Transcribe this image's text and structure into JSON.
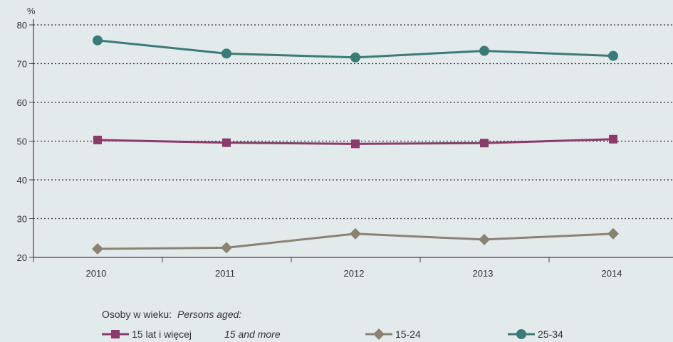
{
  "chart_data": {
    "type": "line",
    "unit_label": "%",
    "categories": [
      "2010",
      "2011",
      "2012",
      "2013",
      "2014"
    ],
    "ylim": [
      20,
      80
    ],
    "y_ticks": [
      20,
      30,
      40,
      50,
      60,
      70,
      80
    ],
    "grid": "horizontal-dotted",
    "legend_position": "bottom",
    "legend_title": "Osoby w wieku:",
    "legend_title_en": "Persons aged:",
    "series": [
      {
        "name": "15 lat i więcej",
        "name_en": "15 and more",
        "marker": "square",
        "color": "#8b3a6b",
        "values": [
          50.3,
          49.6,
          49.3,
          49.5,
          50.5
        ]
      },
      {
        "name": "15-24",
        "marker": "diamond",
        "color": "#8a8273",
        "values": [
          22.2,
          22.5,
          26.1,
          24.6,
          26.1
        ]
      },
      {
        "name": "25-34",
        "marker": "circle",
        "color": "#3a7a78",
        "values": [
          76.0,
          72.6,
          71.6,
          73.3,
          72.0
        ]
      }
    ]
  }
}
